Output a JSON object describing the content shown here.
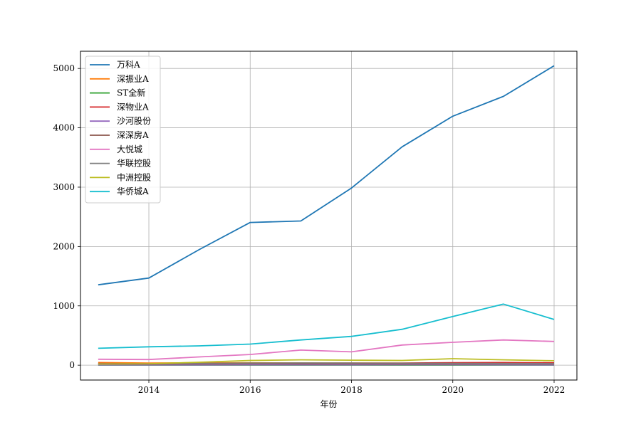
{
  "chart_data": {
    "type": "line",
    "xlabel": "年份",
    "ylabel": "",
    "title": "",
    "x": [
      2013,
      2014,
      2015,
      2016,
      2017,
      2018,
      2019,
      2020,
      2021,
      2022
    ],
    "xlim": [
      2012.65,
      2022.45
    ],
    "ylim": [
      -250,
      5290
    ],
    "xticks": [
      2014,
      2016,
      2018,
      2020,
      2022
    ],
    "yticks": [
      0,
      1000,
      2000,
      3000,
      4000,
      5000
    ],
    "grid": true,
    "legend_position": "top-left",
    "series": [
      {
        "name": "万科A",
        "color": "#1f77b4",
        "values": [
          1355,
          1468,
          1950,
          2405,
          2430,
          2985,
          3680,
          4195,
          4530,
          5045
        ]
      },
      {
        "name": "深振业A",
        "color": "#ff7f0e",
        "values": [
          45,
          35,
          40,
          40,
          38,
          36,
          33,
          32,
          30,
          28
        ]
      },
      {
        "name": "ST全新",
        "color": "#2ca02c",
        "values": [
          2,
          2,
          2,
          2,
          2,
          2,
          2,
          2,
          2,
          2
        ]
      },
      {
        "name": "深物业A",
        "color": "#d62728",
        "values": [
          30,
          25,
          28,
          30,
          32,
          34,
          36,
          42,
          45,
          40
        ]
      },
      {
        "name": "沙河股份",
        "color": "#9467bd",
        "values": [
          5,
          6,
          6,
          7,
          7,
          7,
          8,
          8,
          7,
          6
        ]
      },
      {
        "name": "深深房A",
        "color": "#8c564b",
        "values": [
          20,
          20,
          22,
          25,
          24,
          23,
          22,
          22,
          21,
          20
        ]
      },
      {
        "name": "大悦城",
        "color": "#e377c2",
        "values": [
          100,
          95,
          140,
          180,
          255,
          225,
          340,
          385,
          425,
          400
        ]
      },
      {
        "name": "华联控股",
        "color": "#7f7f7f",
        "values": [
          25,
          25,
          30,
          35,
          38,
          35,
          33,
          30,
          28,
          26
        ]
      },
      {
        "name": "中洲控股",
        "color": "#bcbd22",
        "values": [
          20,
          25,
          50,
          80,
          90,
          85,
          80,
          110,
          90,
          75
        ]
      },
      {
        "name": "华侨城A",
        "color": "#17becf",
        "values": [
          285,
          310,
          325,
          355,
          425,
          485,
          605,
          820,
          1030,
          770
        ]
      }
    ]
  }
}
